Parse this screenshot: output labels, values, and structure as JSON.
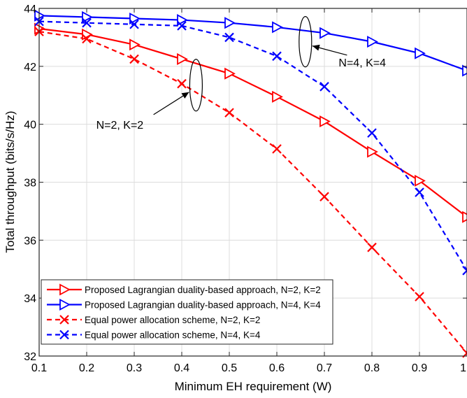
{
  "chart_data": {
    "type": "line",
    "xlabel": "Minimum EH requirement (W)",
    "ylabel": "Total throughput (bits/s/Hz)",
    "xlim": [
      0.1,
      1.0
    ],
    "ylim": [
      32,
      44
    ],
    "xticks": [
      0.1,
      0.2,
      0.3,
      0.4,
      0.5,
      0.6,
      0.7,
      0.8,
      0.9,
      1.0
    ],
    "xtick_labels": [
      "0.1",
      "0.2",
      "0.3",
      "0.4",
      "0.5",
      "0.6",
      "0.7",
      "0.8",
      "0.9",
      "1"
    ],
    "yticks": [
      32,
      34,
      36,
      38,
      40,
      42,
      44
    ],
    "ytick_labels": [
      "32",
      "34",
      "36",
      "38",
      "40",
      "42",
      "44"
    ],
    "grid": true,
    "legend_position": "bottom-left",
    "x": [
      0.1,
      0.2,
      0.3,
      0.4,
      0.5,
      0.6,
      0.7,
      0.8,
      0.9,
      1.0
    ],
    "series": [
      {
        "name": "Proposed Lagrangian duality-based approach, N=2, K=2",
        "values": [
          43.3,
          43.1,
          42.75,
          42.25,
          41.75,
          40.95,
          40.1,
          39.05,
          38.05,
          36.8
        ],
        "color": "#ff0000",
        "dash": "solid",
        "marker": "triangle-right"
      },
      {
        "name": "Proposed Lagrangian duality-based approach, N=4, K=4",
        "values": [
          43.75,
          43.7,
          43.65,
          43.6,
          43.5,
          43.35,
          43.15,
          42.85,
          42.45,
          41.85
        ],
        "color": "#0000ff",
        "dash": "solid",
        "marker": "triangle-right"
      },
      {
        "name": "Equal power allocation scheme, N=2, K=2",
        "values": [
          43.2,
          42.95,
          42.25,
          41.4,
          40.4,
          39.15,
          37.5,
          35.75,
          34.05,
          32.1
        ],
        "color": "#ff0000",
        "dash": "dashed",
        "marker": "x"
      },
      {
        "name": "Equal power allocation scheme, N=4, K=4",
        "values": [
          43.55,
          43.5,
          43.45,
          43.4,
          43.0,
          42.35,
          41.3,
          39.7,
          37.65,
          34.95
        ],
        "color": "#0000ff",
        "dash": "dashed",
        "marker": "x"
      }
    ],
    "annotations": [
      {
        "text": "N=4, K=4",
        "ellipse_x": 0.66,
        "ellipse_y": 42.85,
        "label_x": 0.73,
        "label_y": 42.0
      },
      {
        "text": "N=2, K=2",
        "ellipse_x": 0.43,
        "ellipse_y": 41.35,
        "label_x": 0.22,
        "label_y": 39.85
      }
    ]
  }
}
